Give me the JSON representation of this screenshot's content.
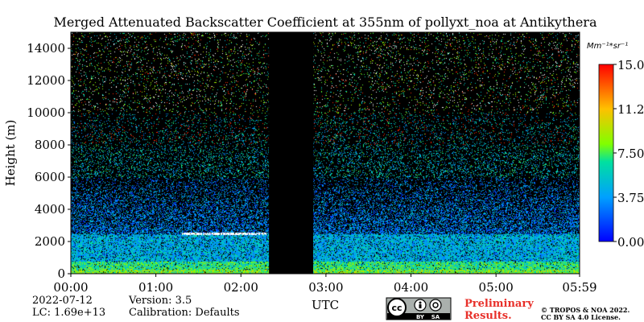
{
  "chart_data": {
    "type": "heatmap",
    "title": "Merged Attenuated Backscatter Coefficient at 355nm of pollyxt_noa at Antikythera",
    "ylabel": "Height (m)",
    "xlabel": "UTC",
    "ylim": [
      0,
      15000
    ],
    "xlim_hours": [
      0,
      5.983
    ],
    "y_ticks": [
      0,
      2000,
      4000,
      6000,
      8000,
      10000,
      12000,
      14000
    ],
    "y_tick_labels": [
      "0",
      "2000",
      "4000",
      "6000",
      "8000",
      "10000",
      "12000",
      "14000"
    ],
    "x_ticks_hours": [
      0,
      1,
      2,
      3,
      4,
      5,
      5.983
    ],
    "x_tick_labels": [
      "00:00",
      "01:00",
      "02:00",
      "03:00",
      "04:00",
      "05:00",
      "05:59"
    ],
    "colorbar": {
      "unit": "Mm⁻¹*sr⁻¹",
      "min": 0.0,
      "max": 15.0,
      "ticks": [
        0.0,
        3.75,
        7.5,
        11.25,
        15.0
      ],
      "tick_labels": [
        "0.00",
        "3.75",
        "7.50",
        "11.25",
        "15.00"
      ],
      "colormap": "jet"
    },
    "no_data_gap_hours": [
      2.33,
      2.85
    ],
    "features": {
      "boundary_layer_top_m": 2500,
      "near_surface_max_m": 800
    }
  },
  "info": {
    "date": "2022-07-12",
    "version": "Version: 3.5",
    "lc": "LC: 1.69e+13",
    "calibration": "Calibration: Defaults"
  },
  "logo": {
    "cc_label": "cc",
    "by_label": "BY",
    "sa_label": "SA"
  },
  "preliminary": [
    "Preliminary",
    "Results."
  ],
  "copyright": [
    "© TROPOS & NOA 2022.",
    "CC BY SA 4.0 License."
  ],
  "colors": {
    "background": "#000000",
    "preliminary_text": "#e8302a"
  }
}
